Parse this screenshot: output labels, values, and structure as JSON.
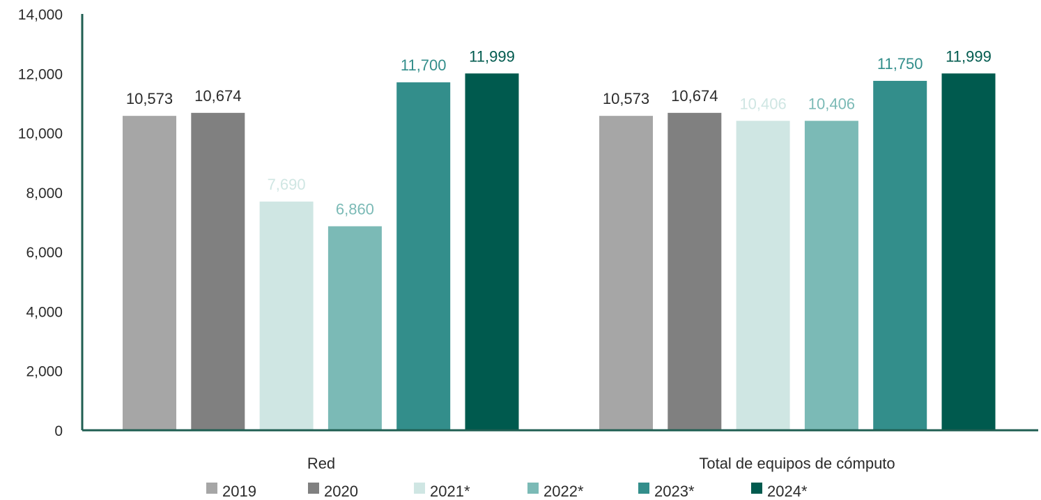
{
  "chart_data": {
    "type": "bar",
    "categories": [
      "Red",
      "Total de equipos de cómputo"
    ],
    "series": [
      {
        "name": "2019",
        "color": "#a6a6a6",
        "label_color": "#2b2b2b",
        "values": [
          10573,
          10573
        ],
        "labels": [
          "10,573",
          "10,573"
        ]
      },
      {
        "name": "2020",
        "color": "#808080",
        "label_color": "#2b2b2b",
        "values": [
          10674,
          10674
        ],
        "labels": [
          "10,674",
          "10,674"
        ]
      },
      {
        "name": "2021*",
        "color": "#cfe6e3",
        "label_color": "#cfe6e3",
        "values": [
          7690,
          10406
        ],
        "labels": [
          "7,690",
          "10,406"
        ]
      },
      {
        "name": "2022*",
        "color": "#7bbab6",
        "label_color": "#7bbab6",
        "values": [
          6860,
          10406
        ],
        "labels": [
          "6,860",
          "10,406"
        ]
      },
      {
        "name": "2023*",
        "color": "#338e8b",
        "label_color": "#338e8b",
        "values": [
          11700,
          11750
        ],
        "labels": [
          "11,700",
          "11,750"
        ]
      },
      {
        "name": "2024*",
        "color": "#005a4e",
        "label_color": "#005a4e",
        "values": [
          11999,
          11999
        ],
        "labels": [
          "11,999",
          "11,999"
        ]
      }
    ],
    "ylim": [
      0,
      14000
    ],
    "yticks": [
      "0",
      "2,000",
      "4,000",
      "6,000",
      "8,000",
      "10,000",
      "12,000",
      "14,000"
    ],
    "ytick_values": [
      0,
      2000,
      4000,
      6000,
      8000,
      10000,
      12000,
      14000
    ],
    "axis_color": "#1f5e52",
    "grid": false,
    "legend_position": "bottom"
  }
}
